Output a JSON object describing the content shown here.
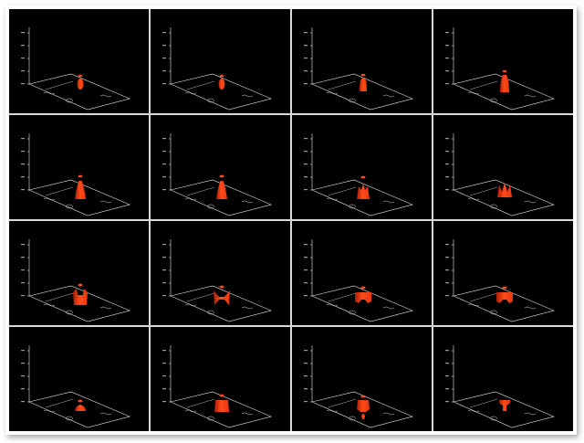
{
  "figure": {
    "background_color": "#000000",
    "plume_colors": {
      "core": "#ff4a1a",
      "mid": "#e8380f",
      "dark": "#a81e05"
    },
    "frames": [
      {
        "title": "",
        "time_label": "",
        "axis_label": "",
        "shape": "pill"
      },
      {
        "title": "",
        "time_label": "",
        "axis_label": "",
        "shape": "pill"
      },
      {
        "title": "",
        "time_label": "",
        "axis_label": "",
        "shape": "bottle-small"
      },
      {
        "title": "",
        "time_label": "",
        "axis_label": "",
        "shape": "bottle"
      },
      {
        "title": "",
        "time_label": "",
        "axis_label": "",
        "shape": "cone"
      },
      {
        "title": "",
        "time_label": "",
        "axis_label": "",
        "shape": "cone"
      },
      {
        "title": "",
        "time_label": "",
        "axis_label": "",
        "shape": "split"
      },
      {
        "title": "",
        "time_label": "",
        "axis_label": "",
        "shape": "fingers"
      },
      {
        "title": "",
        "time_label": "",
        "axis_label": "",
        "shape": "vase"
      },
      {
        "title": "",
        "time_label": "",
        "axis_label": "",
        "shape": "cross"
      },
      {
        "title": "",
        "time_label": "",
        "axis_label": "",
        "shape": "crown"
      },
      {
        "title": "",
        "time_label": "",
        "axis_label": "",
        "shape": "crown"
      },
      {
        "title": "",
        "time_label": "",
        "axis_label": "",
        "shape": "flat"
      },
      {
        "title": "",
        "time_label": "",
        "axis_label": "",
        "shape": "column"
      },
      {
        "title": "",
        "time_label": "",
        "axis_label": "",
        "shape": "drip"
      },
      {
        "title": "",
        "time_label": "",
        "axis_label": "",
        "shape": "goblet"
      }
    ]
  }
}
